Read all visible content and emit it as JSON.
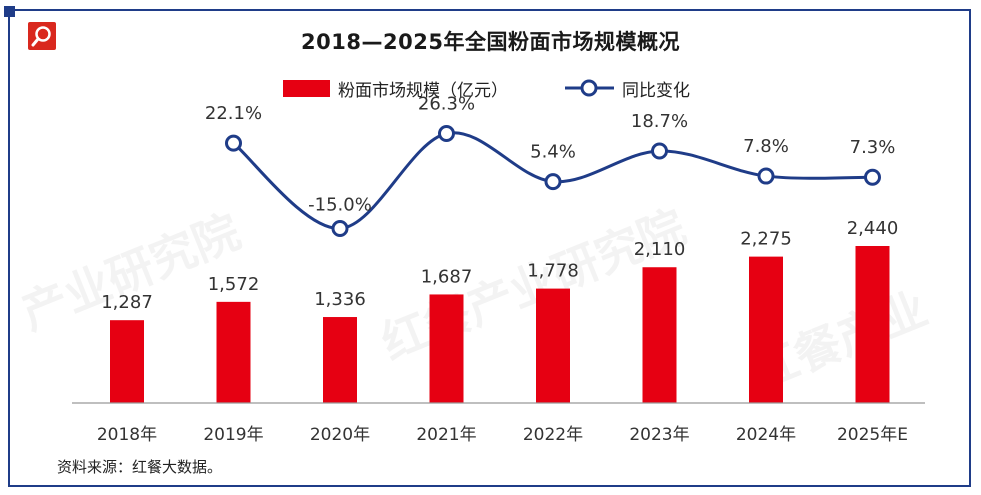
{
  "title": "2018—2025年全国粉面市场规模概况",
  "source": "资料来源：红餐大数据。",
  "colors": {
    "bar": "#e60012",
    "line": "#1f3c88",
    "frame": "#1f3c88",
    "logo": "#d9281e"
  },
  "icons": {
    "logo": "magnifier-icon"
  },
  "chart_data": {
    "type": "bar",
    "title": "2018—2025年全国粉面市场规模概况",
    "categories": [
      "2018年",
      "2019年",
      "2020年",
      "2021年",
      "2022年",
      "2023年",
      "2024年",
      "2025年E"
    ],
    "series": [
      {
        "name": "粉面市场规模（亿元）",
        "type": "bar",
        "values": [
          1287,
          1572,
          1336,
          1687,
          1778,
          2110,
          2275,
          2440
        ],
        "labels": [
          "1,287",
          "1,572",
          "1,336",
          "1,687",
          "1,778",
          "2,110",
          "2,275",
          "2,440"
        ]
      },
      {
        "name": "同比变化",
        "type": "line",
        "values": [
          null,
          22.1,
          -15.0,
          26.3,
          5.4,
          18.7,
          7.8,
          7.3
        ],
        "labels": [
          "",
          "22.1%",
          "-15.0%",
          "26.3%",
          "5.4%",
          "18.7%",
          "7.8%",
          "7.3%"
        ]
      }
    ],
    "legend_position": "top-center",
    "grid": false
  }
}
